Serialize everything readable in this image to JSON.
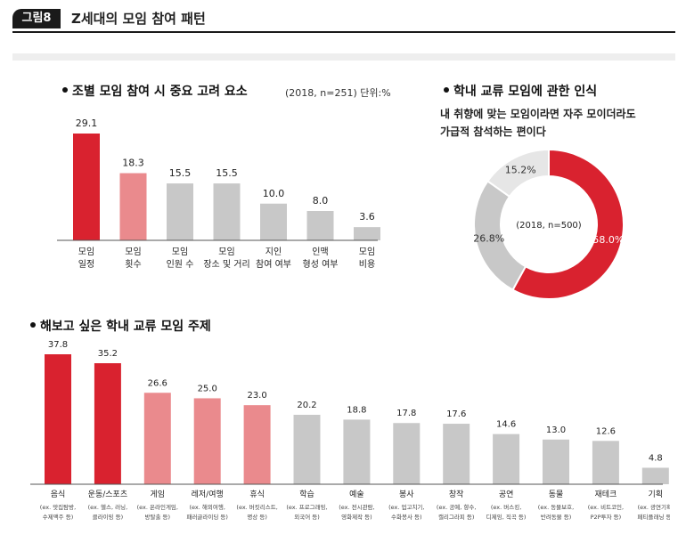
{
  "figure": {
    "tag": "그림8",
    "title": "Z세대의 모임 참여 패턴"
  },
  "colors": {
    "red": "#d9222f",
    "pink": "#ea8a8d",
    "gray": "#c8c8c8",
    "light_gray": "#e6e6e6"
  },
  "chart_data": [
    {
      "type": "bar",
      "title": "조별 모임 참여 시 중요 고려 요소",
      "note": "(2018, n=251)  단위:%",
      "categories": [
        [
          "모임",
          "일정"
        ],
        [
          "모임",
          "횟수"
        ],
        [
          "모임",
          "인원 수"
        ],
        [
          "모임",
          "장소 및 거리"
        ],
        [
          "지인",
          "참여 여부"
        ],
        [
          "인맥",
          "형성 여부"
        ],
        [
          "모임",
          "비용"
        ]
      ],
      "values": [
        29.1,
        18.3,
        15.5,
        15.5,
        10.0,
        8.0,
        3.6
      ],
      "value_labels": [
        "29.1",
        "18.3",
        "15.5",
        "15.5",
        "10.0",
        "8.0",
        "3.6"
      ],
      "bar_colors": [
        "red",
        "pink",
        "gray",
        "gray",
        "gray",
        "gray",
        "gray"
      ]
    },
    {
      "type": "pie",
      "title": "학내 교류 모임에 관한 인식",
      "subtitle_lines": [
        "내 취향에 맞는 모임이라면 자주 모이더라도",
        "가급적 참석하는 편이다"
      ],
      "center_label": "(2018, n=500)",
      "slices": [
        {
          "value": 58.0,
          "label": "58.0%",
          "color": "red"
        },
        {
          "value": 26.8,
          "label": "26.8%",
          "color": "gray"
        },
        {
          "value": 15.2,
          "label": "15.2%",
          "color": "light_gray"
        }
      ]
    },
    {
      "type": "bar",
      "title": "해보고 싶은 학내 교류 모임 주제",
      "categories": [
        "음식",
        "운동/스포츠",
        "게임",
        "레저/여행",
        "휴식",
        "학습",
        "예술",
        "봉사",
        "창작",
        "공연",
        "동물",
        "재테크",
        "기획"
      ],
      "sub_labels": [
        [
          "(ex. 맛집탐방,",
          "수제맥주 등)"
        ],
        [
          "(ex. 헬스, 러닝,",
          "클라이밍 등)"
        ],
        [
          "(ex. 온라인게임,",
          "방탈출 등)"
        ],
        [
          "(ex. 해외여행,",
          "패러글라이딩 등)"
        ],
        [
          "(ex. 버킷리스트,",
          "명상 등)"
        ],
        [
          "(ex. 프로그래밍,",
          "외국어 등)"
        ],
        [
          "(ex. 전시관람,",
          "영화제작 등)"
        ],
        [
          "(ex. 업고치기,",
          "수화봉사 등)"
        ],
        [
          "(ex. 공예, 향수,",
          "캘리그라피 등)"
        ],
        [
          "(ex. 버스킹,",
          "디제잉, 직곡 등)"
        ],
        [
          "(ex. 동물보호,",
          "반려동물 등)"
        ],
        [
          "(ex. 비트코인,",
          "P2P투자 등)"
        ],
        [
          "(ex. 광연기획,",
          "페티플래닝 등)"
        ]
      ],
      "values": [
        37.8,
        35.2,
        26.6,
        25.0,
        23.0,
        20.2,
        18.8,
        17.8,
        17.6,
        14.6,
        13.0,
        12.6,
        4.8
      ],
      "value_labels": [
        "37.8",
        "35.2",
        "26.6",
        "25.0",
        "23.0",
        "20.2",
        "18.8",
        "17.8",
        "17.6",
        "14.6",
        "13.0",
        "12.6",
        "4.8"
      ],
      "bar_colors": [
        "red",
        "red",
        "pink",
        "pink",
        "pink",
        "gray",
        "gray",
        "gray",
        "gray",
        "gray",
        "gray",
        "gray",
        "gray"
      ]
    }
  ]
}
